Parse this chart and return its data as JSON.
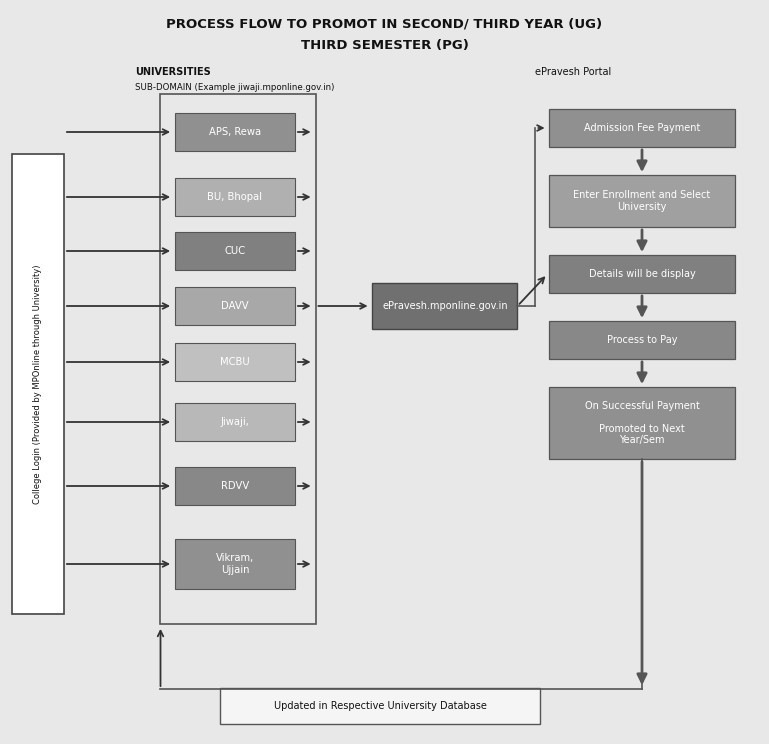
{
  "title_line1": "PROCESS FLOW TO PROMOT IN SECOND/ THIRD YEAR (UG)",
  "title_line2": "THIRD SEMESTER (PG)",
  "label_universities": "UNIVERSITIES",
  "label_subdomain": "SUB-DOMAIN (Example jiwaji.mponline.gov.in)",
  "label_epravesh": "ePravesh Portal",
  "college_login_label": "College Login (Provided by MPOnline through University)",
  "universities": [
    "APS, Rewa",
    "BU, Bhopal",
    "CUC",
    "DAVV",
    "MCBU",
    "Jiwaji,",
    "RDVV",
    "Vikram,\nUjjain"
  ],
  "middle_box": "ePravesh.mponline.gov.in",
  "right_boxes": [
    "Admission Fee Payment",
    "Enter Enrollment and Select\nUniversity",
    "Details will be display",
    "Process to Pay",
    "On Successful Payment\n\nPromoted to Next\nYear/Sem"
  ],
  "bottom_box": "Updated in Respective University Database",
  "bg_color": "#e8e8e8",
  "box_uni_colors": [
    "#909090",
    "#b0b0b0",
    "#808080",
    "#a8a8a8",
    "#c0c0c0",
    "#b8b8b8",
    "#888888",
    "#909090"
  ],
  "box_mid_color": "#707070",
  "box_right_colors": [
    "#909090",
    "#a0a0a0",
    "#808080",
    "#888888",
    "#909090"
  ],
  "box_college_color": "#ffffff",
  "text_white": "#ffffff",
  "text_black": "#111111",
  "arrow_color": "#333333",
  "line_color": "#555555"
}
